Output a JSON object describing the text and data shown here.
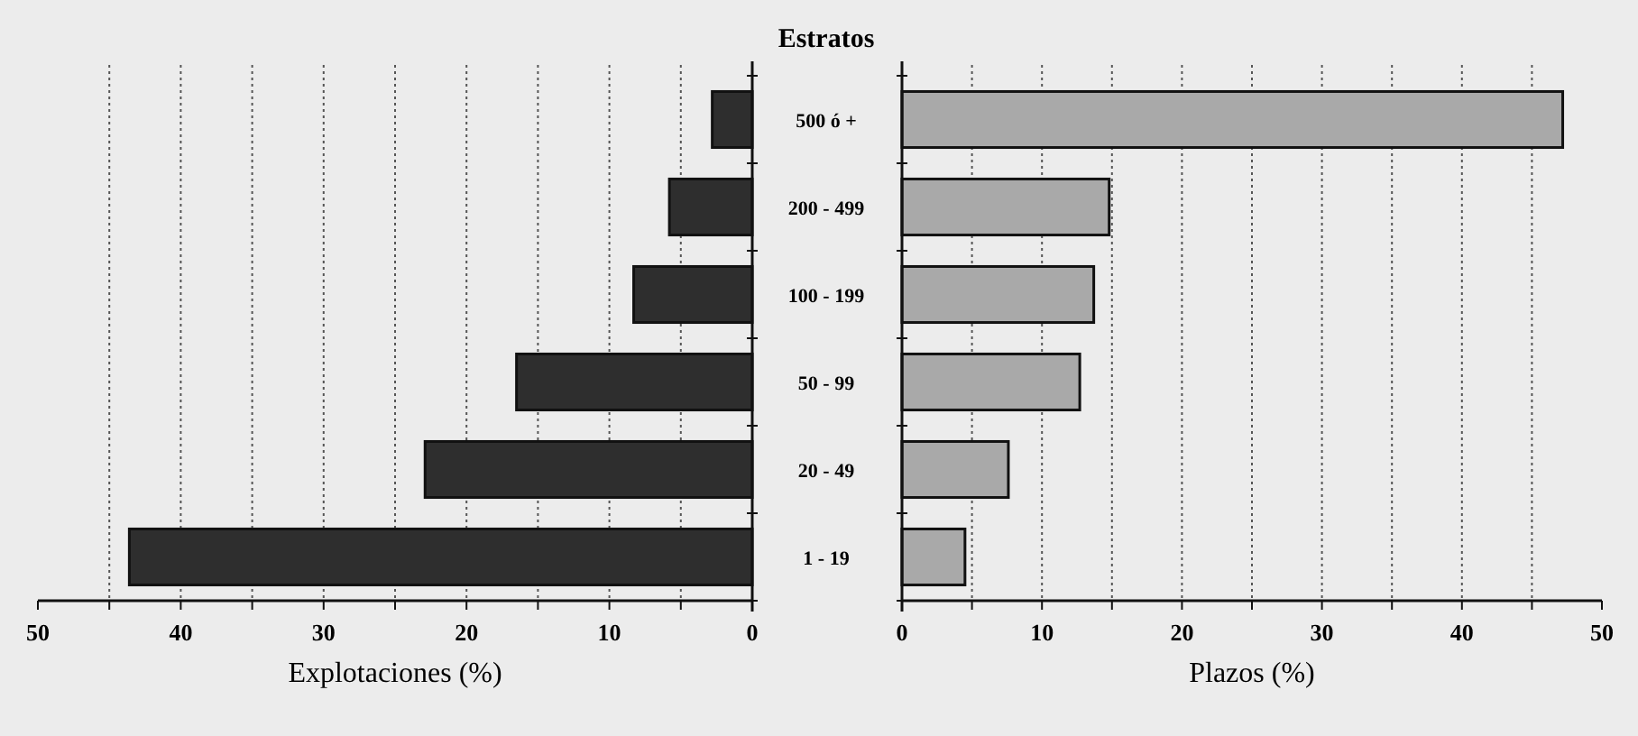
{
  "chart_data": [
    {
      "type": "bar",
      "orientation": "horizontal",
      "title": "Estratos",
      "xlabel": "Explotaciones (%)",
      "categories": [
        "500 ó +",
        "200 - 499",
        "100 - 199",
        "50 - 99",
        "20 - 49",
        "1 - 19"
      ],
      "values": [
        2.8,
        5.8,
        8.3,
        16.5,
        22.9,
        43.6
      ],
      "color": "#2e2e2e",
      "xlim": [
        50,
        0
      ],
      "xticks": [
        50,
        {
          "value": 45,
          "label": null
        },
        40,
        {
          "value": 35,
          "label": null
        },
        30,
        {
          "value": 25,
          "label": null
        },
        20,
        {
          "value": 15,
          "label": null
        },
        10,
        {
          "value": 5,
          "label": null
        },
        0
      ],
      "grid": "x"
    },
    {
      "type": "bar",
      "orientation": "horizontal",
      "xlabel": "Plazos (%)",
      "values": [
        47.2,
        14.8,
        13.7,
        12.7,
        7.6,
        4.5
      ],
      "color": "#a9a9a9",
      "xlim": [
        0,
        50
      ],
      "xticks": [
        0,
        {
          "value": 5,
          "label": null
        },
        10,
        {
          "value": 15,
          "label": null
        },
        20,
        {
          "value": 25,
          "label": null
        },
        30,
        {
          "value": 35,
          "label": null
        },
        40,
        {
          "value": 45,
          "label": null
        },
        50
      ],
      "grid": "x"
    }
  ]
}
